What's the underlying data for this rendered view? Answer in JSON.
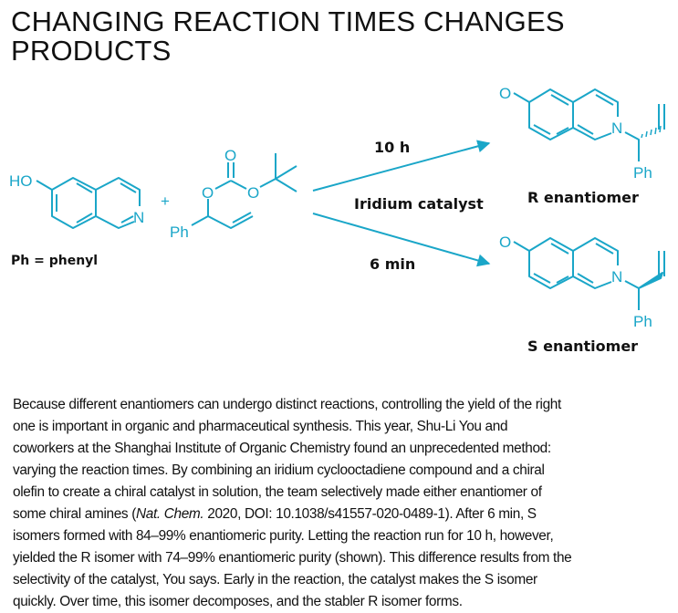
{
  "title": {
    "line1": "CHANGING REACTION TIMES CHANGES",
    "line2": "PRODUCTS"
  },
  "colors": {
    "molecule": "#1aa6c8",
    "text": "#111111"
  },
  "scheme": {
    "reactant1": {
      "ho": "HO",
      "n": "N"
    },
    "plus": "+",
    "reactant2": {
      "o_carbonyl": "O",
      "o_left": "O",
      "o_right": "O",
      "ph": "Ph"
    },
    "ph_legend": "Ph = phenyl",
    "arrow_top_label": "10 h",
    "catalyst_label": "Iridium catalyst",
    "arrow_bottom_label": "6 min",
    "product_r": {
      "o": "O",
      "n": "N",
      "ph": "Ph",
      "label": "R enantiomer"
    },
    "product_s": {
      "o": "O",
      "n": "N",
      "ph": "Ph",
      "label": "S enantiomer"
    }
  },
  "body": {
    "lines": [
      "Because different enantiomers can undergo distinct reactions, controlling the yield of the right",
      "one is important in organic and pharmaceutical synthesis. This year, Shu-Li You and",
      "coworkers at the Shanghai Institute of Organic Chemistry found an unprecedented method:",
      "varying the reaction times. By combining an iridium cyclooctadiene compound and a chiral",
      "olefin to create a chiral catalyst in solution, the team selectively made either enantiomer of"
    ],
    "line6_pre": "some chiral amines (",
    "line6_journal": "Nat. Chem.",
    "line6_post": " 2020, DOI: 10.1038/s41557-020-0489-1). After 6 min, S",
    "lines_after": [
      "isomers formed with 84–99% enantiomeric purity. Letting the reaction run for 10 h, however,",
      "yielded the R isomer with 74–99% enantiomeric purity (shown). This difference results from the",
      "selectivity of the catalyst, You says. Early in the reaction, the catalyst makes the S isomer",
      "quickly. Over time, this isomer decomposes, and the stabler R isomer forms."
    ]
  }
}
